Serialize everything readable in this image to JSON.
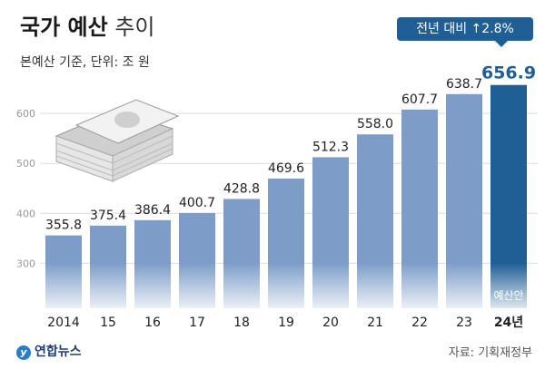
{
  "header": {
    "title_bold": "국가 예산",
    "title_light": "추이",
    "subtitle": "본예산 기준, 단위: 조 원",
    "callout": "전년 대비 ↑2.8%"
  },
  "footer": {
    "agency": "연합뉴스",
    "source": "자료: 기획재정부"
  },
  "colors": {
    "bar": "#7d9dc8",
    "bar_highlight": "#1f5f96",
    "value_text": "#222222",
    "highlight_text": "#1f5f96"
  },
  "chart_data": {
    "type": "bar",
    "title": "국가 예산 추이",
    "categories": [
      "2014",
      "15",
      "16",
      "17",
      "18",
      "19",
      "20",
      "21",
      "22",
      "23",
      "24년"
    ],
    "values": [
      355.8,
      375.4,
      386.4,
      400.7,
      428.8,
      469.6,
      512.3,
      558.0,
      607.7,
      638.7,
      656.9
    ],
    "value_labels": [
      "355.8",
      "375.4",
      "386.4",
      "400.7",
      "428.8",
      "469.6",
      "512.3",
      "558.0",
      "607.7",
      "638.7",
      "656.9"
    ],
    "highlight_index": 10,
    "highlight_label": "예산안",
    "yticks": [
      300,
      400,
      500,
      600
    ],
    "ylim": [
      210,
      700
    ],
    "grid": true
  }
}
